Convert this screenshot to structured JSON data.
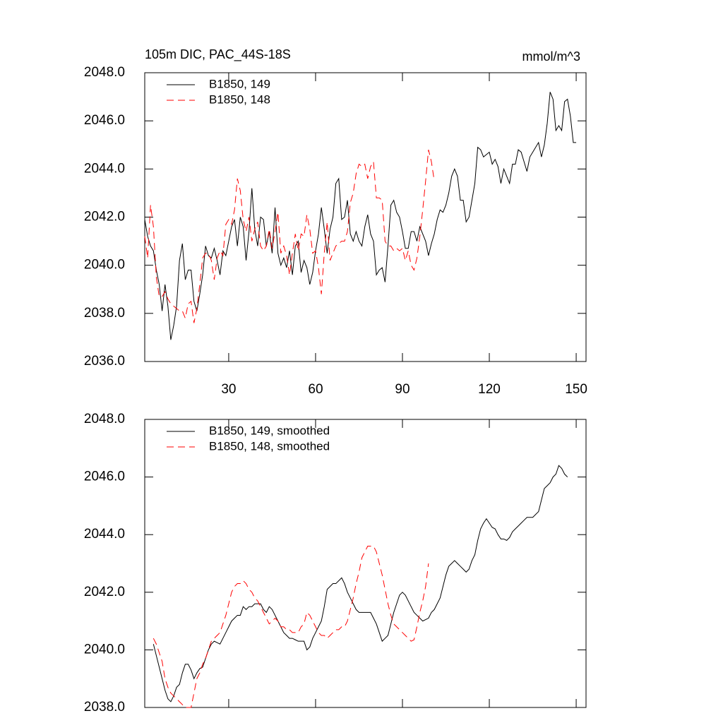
{
  "chart_data": [
    {
      "type": "line",
      "title": "105m DIC, PAC_44S-18S",
      "units": "mmol/m^3",
      "legend": "top-left",
      "xlim": [
        1,
        153.4
      ],
      "xticks": [
        30,
        60,
        90,
        120,
        150
      ],
      "ylim": [
        2036,
        2048
      ],
      "yticks": [
        {
          "value": 2036,
          "label": "2036.0"
        },
        {
          "value": 2038,
          "label": "2038.0"
        },
        {
          "value": 2040,
          "label": "2040.0"
        },
        {
          "value": 2042,
          "label": "2042.0"
        },
        {
          "value": 2044,
          "label": "2044.0"
        },
        {
          "value": 2046,
          "label": "2046.0"
        },
        {
          "value": 2048,
          "label": "2048.0"
        }
      ],
      "x": [
        1,
        2,
        3,
        4,
        5,
        6,
        7,
        8,
        9,
        10,
        11,
        12,
        13,
        14,
        15,
        16,
        17,
        18,
        19,
        20,
        21,
        22,
        23,
        24,
        25,
        26,
        27,
        28,
        29,
        30,
        31,
        32,
        33,
        34,
        35,
        36,
        37,
        38,
        39,
        40,
        41,
        42,
        43,
        44,
        45,
        46,
        47,
        48,
        49,
        50,
        51,
        52,
        53,
        54,
        55,
        56,
        57,
        58,
        59,
        60,
        61,
        62,
        63,
        64,
        65,
        66,
        67,
        68,
        69,
        70,
        71,
        72,
        73,
        74,
        75,
        76,
        77,
        78,
        79,
        80,
        81,
        82,
        83,
        84,
        85,
        86,
        87,
        88,
        89,
        90,
        91,
        92,
        93,
        94,
        95,
        96,
        97,
        98,
        99,
        100,
        101,
        102,
        103,
        104,
        105,
        106,
        107,
        108,
        109,
        110,
        111,
        112,
        113,
        114,
        115,
        116,
        117,
        118,
        119,
        120,
        121,
        122,
        123,
        124,
        125,
        126,
        127,
        128,
        129,
        130,
        131,
        132,
        133,
        134,
        135,
        136,
        137,
        138,
        139,
        140,
        141,
        142,
        143,
        144,
        145,
        146,
        147,
        148,
        149,
        150
      ],
      "series": [
        {
          "name": "B1850, 149",
          "color": "#000000",
          "dash": "solid",
          "values": [
            2041.9,
            2041.2,
            2040.8,
            2040.6,
            2039.8,
            2039.2,
            2038.1,
            2039.2,
            2038.3,
            2036.9,
            2037.5,
            2038.3,
            2040.2,
            2040.9,
            2039.4,
            2039.8,
            2039.8,
            2038.5,
            2038.1,
            2038.8,
            2039.6,
            2040.8,
            2040.4,
            2040.3,
            2040.7,
            2040.2,
            2039.6,
            2040.6,
            2040.4,
            2041.0,
            2041.6,
            2041.9,
            2040.8,
            2042.0,
            2041.6,
            2040.2,
            2041.4,
            2043.2,
            2041.5,
            2040.8,
            2042.0,
            2041.9,
            2040.8,
            2041.4,
            2040.5,
            2042.4,
            2040.5,
            2040.0,
            2040.3,
            2039.9,
            2040.6,
            2039.6,
            2040.8,
            2041.0,
            2039.7,
            2040.2,
            2039.9,
            2039.2,
            2039.7,
            2040.6,
            2041.3,
            2042.4,
            2041.5,
            2040.5,
            2041.5,
            2042.0,
            2043.4,
            2043.6,
            2041.9,
            2042.0,
            2042.7,
            2041.3,
            2041.0,
            2041.4,
            2041.0,
            2040.8,
            2041.6,
            2042.1,
            2041.3,
            2041.0,
            2039.6,
            2039.8,
            2039.9,
            2039.3,
            2040.8,
            2042.5,
            2042.7,
            2042.2,
            2042.0,
            2041.4,
            2040.7,
            2040.7,
            2041.4,
            2041.4,
            2041.0,
            2041.6,
            2041.3,
            2041.0,
            2040.4,
            2040.9,
            2041.3,
            2041.9,
            2042.3,
            2042.2,
            2042.5,
            2043.0,
            2043.7,
            2044.0,
            2043.7,
            2042.7,
            2042.7,
            2041.8,
            2042.0,
            2042.7,
            2043.4,
            2044.9,
            2044.8,
            2044.5,
            2044.6,
            2044.7,
            2044.2,
            2044.4,
            2044.1,
            2043.4,
            2044.0,
            2043.7,
            2043.4,
            2044.2,
            2044.2,
            2044.8,
            2044.7,
            2044.3,
            2043.9,
            2044.5,
            2044.7,
            2044.9,
            2045.1,
            2044.5,
            2045.0,
            2045.9,
            2047.2,
            2046.9,
            2045.6,
            2045.8,
            2045.6,
            2046.8,
            2046.9,
            2046.2,
            2045.1,
            2045.1
          ]
        },
        {
          "name": "B1850, 148",
          "color": "#ff0000",
          "dash": "dashed",
          "values": [
            2041.2,
            2040.3,
            2042.5,
            2041.6,
            2039.5,
            2038.7,
            2038.7,
            2038.9,
            2038.6,
            2038.4,
            2038.3,
            2038.2,
            2038.1,
            2038.1,
            2037.8,
            2038.4,
            2038.5,
            2037.6,
            2038.2,
            2039.2,
            2040.3,
            2040.5,
            2040.5,
            2040.2,
            2039.4,
            2040.3,
            2040.6,
            2040.4,
            2041.7,
            2041.9,
            2041.7,
            2042.3,
            2043.6,
            2043.1,
            2041.9,
            2041.4,
            2042.0,
            2041.0,
            2041.5,
            2041.8,
            2040.8,
            2040.6,
            2040.8,
            2041.5,
            2040.7,
            2041.4,
            2042.2,
            2040.5,
            2040.8,
            2040.4,
            2039.6,
            2040.5,
            2041.3,
            2040.6,
            2041.3,
            2041.2,
            2042.1,
            2041.5,
            2040.5,
            2040.6,
            2039.9,
            2038.8,
            2040.5,
            2041.8,
            2040.2,
            2040.5,
            2040.8,
            2040.9,
            2041.0,
            2041.0,
            2041.4,
            2042.6,
            2043.0,
            2043.8,
            2044.2,
            2044.1,
            2044.2,
            2043.6,
            2044.1,
            2044.3,
            2042.8,
            2042.8,
            2042.7,
            2041.0,
            2040.8,
            2040.8,
            2040.6,
            2040.7,
            2040.6,
            2040.7,
            2040.2,
            2040.6,
            2040.0,
            2039.8,
            2040.3,
            2041.2,
            2042.3,
            2043.5,
            2044.8,
            2044.3,
            2043.5,
            null,
            null,
            null,
            null,
            null,
            null,
            null,
            null,
            null,
            null,
            null,
            null,
            null,
            null,
            null,
            null,
            null,
            null,
            null,
            null,
            null,
            null,
            null,
            null,
            null,
            null,
            null,
            null,
            null,
            null,
            null,
            null,
            null,
            null,
            null,
            null,
            null,
            null,
            null,
            null,
            null,
            null,
            null,
            null,
            null,
            null,
            null,
            null,
            null
          ]
        }
      ]
    },
    {
      "type": "line",
      "legend": "top-left",
      "xtick_labels": false,
      "xlim": [
        1,
        153.4
      ],
      "xticks": [
        30,
        60,
        90,
        120,
        150
      ],
      "ylim": [
        2038,
        2048
      ],
      "yticks": [
        {
          "value": 2038,
          "label": "2038.0"
        },
        {
          "value": 2040,
          "label": "2040.0"
        },
        {
          "value": 2042,
          "label": "2042.0"
        },
        {
          "value": 2044,
          "label": "2044.0"
        },
        {
          "value": 2046,
          "label": "2046.0"
        },
        {
          "value": 2048,
          "label": "2048.0"
        }
      ],
      "x": [
        1,
        2,
        3,
        4,
        5,
        6,
        7,
        8,
        9,
        10,
        11,
        12,
        13,
        14,
        15,
        16,
        17,
        18,
        19,
        20,
        21,
        22,
        23,
        24,
        25,
        26,
        27,
        28,
        29,
        30,
        31,
        32,
        33,
        34,
        35,
        36,
        37,
        38,
        39,
        40,
        41,
        42,
        43,
        44,
        45,
        46,
        47,
        48,
        49,
        50,
        51,
        52,
        53,
        54,
        55,
        56,
        57,
        58,
        59,
        60,
        61,
        62,
        63,
        64,
        65,
        66,
        67,
        68,
        69,
        70,
        71,
        72,
        73,
        74,
        75,
        76,
        77,
        78,
        79,
        80,
        81,
        82,
        83,
        84,
        85,
        86,
        87,
        88,
        89,
        90,
        91,
        92,
        93,
        94,
        95,
        96,
        97,
        98,
        99,
        100,
        101,
        102,
        103,
        104,
        105,
        106,
        107,
        108,
        109,
        110,
        111,
        112,
        113,
        114,
        115,
        116,
        117,
        118,
        119,
        120,
        121,
        122,
        123,
        124,
        125,
        126,
        127,
        128,
        129,
        130,
        131,
        132,
        133,
        134,
        135,
        136,
        137,
        138,
        139,
        140,
        141,
        142,
        143,
        144,
        145,
        146,
        147,
        148,
        149,
        150
      ],
      "series": [
        {
          "name": "B1850, 149, smoothed",
          "color": "#000000",
          "dash": "solid",
          "values": [
            null,
            null,
            null,
            2040.2,
            2039.8,
            2039.4,
            2039.0,
            2038.6,
            2038.3,
            2038.2,
            2038.4,
            2038.7,
            2038.8,
            2039.2,
            2039.5,
            2039.5,
            2039.3,
            2039.0,
            2039.2,
            2039.35,
            2039.4,
            2039.7,
            2040.0,
            2040.2,
            2040.3,
            2040.25,
            2040.2,
            2040.4,
            2040.6,
            2040.8,
            2041.0,
            2041.1,
            2041.2,
            2041.2,
            2041.5,
            2041.4,
            2041.5,
            2041.5,
            2041.6,
            2041.6,
            2041.6,
            2041.4,
            2041.3,
            2041.5,
            2041.4,
            2041.2,
            2041.0,
            2040.8,
            2040.6,
            2040.5,
            2040.4,
            2040.4,
            2040.35,
            2040.3,
            2040.3,
            2040.3,
            2040.0,
            2040.1,
            2040.4,
            2040.6,
            2040.8,
            2041.0,
            2041.5,
            2042.1,
            2042.2,
            2042.3,
            2042.3,
            2042.4,
            2042.5,
            2042.3,
            2042.0,
            2041.8,
            2041.6,
            2041.4,
            2041.3,
            2041.3,
            2041.3,
            2041.3,
            2041.3,
            2041.1,
            2040.9,
            2040.6,
            2040.3,
            2040.4,
            2040.5,
            2040.9,
            2041.3,
            2041.6,
            2041.9,
            2042.0,
            2041.9,
            2041.7,
            2041.5,
            2041.3,
            2041.2,
            2041.1,
            2041.0,
            2041.05,
            2041.1,
            2041.3,
            2041.4,
            2041.6,
            2041.8,
            2042.2,
            2042.6,
            2042.9,
            2043.0,
            2043.1,
            2043.0,
            2042.9,
            2042.8,
            2042.7,
            2042.8,
            2043.1,
            2043.3,
            2043.8,
            2044.2,
            2044.4,
            2044.55,
            2044.4,
            2044.25,
            2044.2,
            2044.0,
            2043.85,
            2043.85,
            2043.8,
            2043.9,
            2044.1,
            2044.2,
            2044.3,
            2044.4,
            2044.5,
            2044.6,
            2044.6,
            2044.6,
            2044.7,
            2044.8,
            2045.2,
            2045.6,
            2045.7,
            2045.8,
            2046.0,
            2046.1,
            2046.4,
            2046.3,
            2046.1,
            2046.0,
            null,
            null,
            null
          ]
        },
        {
          "name": "B1850, 148, smoothed",
          "color": "#ff0000",
          "dash": "dashed",
          "values": [
            null,
            null,
            null,
            2040.4,
            2040.2,
            2039.9,
            2039.6,
            2039.0,
            2038.7,
            2038.5,
            2038.4,
            2038.3,
            2038.2,
            2038.1,
            2038.0,
            2038.0,
            2038.0,
            2038.5,
            2039.0,
            2039.2,
            2039.5,
            2039.7,
            2040.0,
            2040.3,
            2040.4,
            2040.5,
            2040.6,
            2040.9,
            2041.2,
            2041.6,
            2042.0,
            2042.2,
            2042.3,
            2042.3,
            2042.4,
            2042.3,
            2042.1,
            2042.0,
            2041.8,
            2041.7,
            2041.5,
            2041.3,
            2041.1,
            2040.9,
            2041.0,
            2041.1,
            2041.0,
            2040.8,
            2040.8,
            2040.7,
            2040.7,
            2040.6,
            2040.6,
            2040.6,
            2040.8,
            2040.9,
            2041.3,
            2041.2,
            2041.0,
            2040.8,
            2040.6,
            2040.5,
            2040.5,
            2040.4,
            2040.5,
            2040.6,
            2040.7,
            2040.7,
            2040.8,
            2040.8,
            2041.0,
            2041.4,
            2041.8,
            2042.3,
            2042.7,
            2043.2,
            2043.4,
            2043.6,
            2043.6,
            2043.6,
            2043.4,
            2043.0,
            2042.6,
            2042.1,
            2041.6,
            2041.2,
            2040.9,
            2040.8,
            2040.7,
            2040.6,
            2040.5,
            2040.4,
            2040.3,
            2040.35,
            2040.8,
            2041.3,
            2041.7,
            2042.2,
            2043.0,
            null,
            null,
            null,
            null,
            null,
            null,
            null,
            null,
            null,
            null,
            null,
            null,
            null,
            null,
            null,
            null,
            null,
            null,
            null,
            null,
            null,
            null,
            null,
            null,
            null,
            null,
            null,
            null,
            null,
            null,
            null,
            null,
            null,
            null,
            null,
            null,
            null,
            null,
            null,
            null,
            null,
            null,
            null,
            null,
            null,
            null,
            null,
            null,
            null,
            null,
            null
          ]
        }
      ]
    }
  ]
}
